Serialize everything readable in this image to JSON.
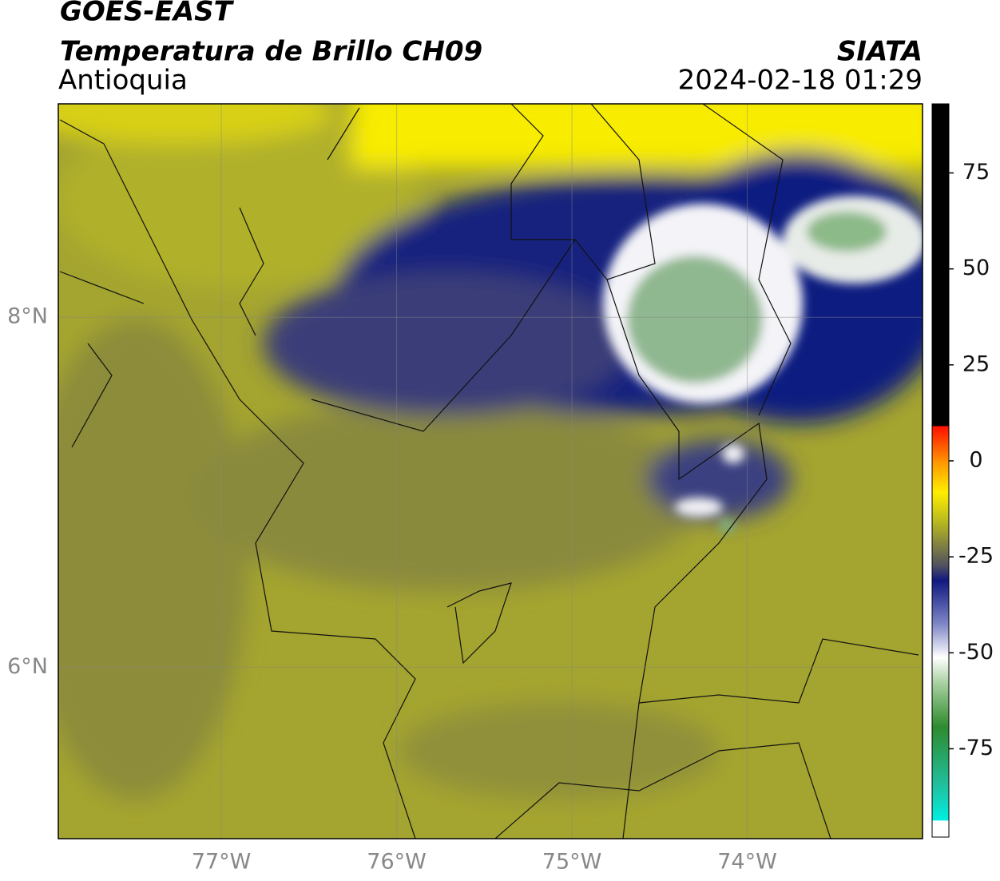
{
  "header": {
    "satellite": "GOES-EAST",
    "product": "Temperatura de Brillo CH09",
    "region": "Antioquia",
    "source": "SIATA",
    "datetime": "2024-02-18 01:29"
  },
  "map": {
    "lonlim": [
      -77.93,
      -73.0
    ],
    "latlim": [
      5.02,
      9.22
    ],
    "lonticks": [
      {
        "value": -77,
        "label": "77°W"
      },
      {
        "value": -76,
        "label": "76°W"
      },
      {
        "value": -75,
        "label": "75°W"
      },
      {
        "value": -74,
        "label": "74°W"
      }
    ],
    "latticks": [
      {
        "value": 6,
        "label": "6°N"
      },
      {
        "value": 8,
        "label": "8°N"
      }
    ],
    "grid": true
  },
  "colorbar": {
    "lim": [
      -98,
      93
    ],
    "ticks": [
      -75,
      -50,
      -25,
      0,
      25,
      50,
      75
    ]
  }
}
